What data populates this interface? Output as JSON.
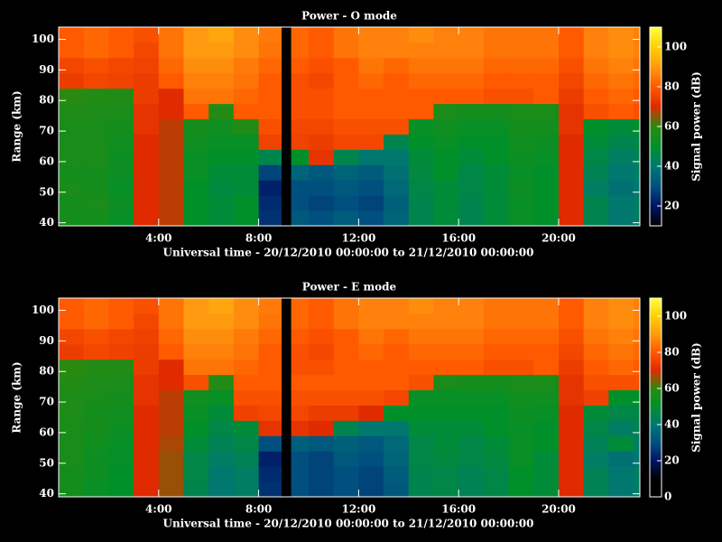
{
  "chart_data": [
    {
      "type": "heatmap",
      "title": "Power - O mode",
      "x_label": "Universal time - 20/12/2010 00:00:00 to 21/12/2010 00:00:00",
      "y_label": "Range (km)",
      "colorbar_label": "Signal power (dB)",
      "xbins": [
        0,
        1,
        2,
        3,
        4,
        5,
        6,
        7,
        8,
        8.9,
        9.3,
        10,
        11,
        12,
        13,
        14,
        15,
        16,
        17,
        18,
        19,
        20,
        21,
        22,
        23,
        23.25
      ],
      "ybins": [
        39,
        44,
        49,
        54,
        59,
        64,
        69,
        74,
        79,
        84,
        89,
        94,
        99,
        104
      ],
      "xlim": [
        0,
        23.25
      ],
      "ylim": [
        39,
        104
      ],
      "zlim": [
        10,
        110
      ],
      "xticks": [
        {
          "value": 4,
          "label": "4:00"
        },
        {
          "value": 8,
          "label": "8:00"
        },
        {
          "value": 12,
          "label": "12:00"
        },
        {
          "value": 16,
          "label": "16:00"
        },
        {
          "value": 20,
          "label": "20:00"
        }
      ],
      "yticks": [
        40,
        50,
        60,
        70,
        80,
        90,
        100
      ],
      "zticks": [
        20,
        40,
        60,
        80,
        100
      ],
      "colorscale": [
        "#000000",
        "#001464",
        "#00507f",
        "#007870",
        "#00902a",
        "#2a8a10",
        "#e02a00",
        "#ff5a00",
        "#ff9a10",
        "#ffd000",
        "#ffff40"
      ],
      "z": [
        [
          55,
          55,
          52,
          70,
          68,
          50,
          48,
          50,
          25,
          null,
          32,
          30,
          33,
          30,
          35,
          45,
          48,
          45,
          48,
          52,
          50,
          70,
          45,
          40,
          42
        ],
        [
          55,
          56,
          53,
          70,
          68,
          50,
          48,
          50,
          24,
          null,
          30,
          28,
          30,
          28,
          34,
          45,
          48,
          45,
          48,
          52,
          50,
          70,
          45,
          40,
          42
        ],
        [
          56,
          55,
          52,
          70,
          68,
          50,
          47,
          48,
          22,
          null,
          30,
          30,
          32,
          30,
          36,
          46,
          48,
          46,
          48,
          53,
          50,
          70,
          42,
          38,
          40
        ],
        [
          55,
          55,
          53,
          70,
          68,
          52,
          48,
          48,
          28,
          null,
          35,
          32,
          35,
          33,
          38,
          47,
          50,
          46,
          48,
          52,
          50,
          70,
          44,
          40,
          42
        ],
        [
          56,
          56,
          53,
          70,
          68,
          52,
          50,
          50,
          45,
          null,
          50,
          72,
          45,
          40,
          40,
          48,
          50,
          48,
          50,
          53,
          52,
          70,
          46,
          42,
          44
        ],
        [
          56,
          56,
          54,
          70,
          68,
          54,
          52,
          52,
          75,
          null,
          75,
          74,
          76,
          76,
          45,
          50,
          52,
          50,
          50,
          54,
          53,
          70,
          48,
          45,
          46
        ],
        [
          56,
          56,
          55,
          72,
          68,
          55,
          54,
          58,
          78,
          null,
          76,
          76,
          78,
          78,
          78,
          52,
          54,
          52,
          52,
          55,
          55,
          72,
          50,
          48,
          50
        ],
        [
          57,
          57,
          56,
          72,
          70,
          80,
          58,
          80,
          80,
          null,
          78,
          78,
          80,
          80,
          80,
          80,
          56,
          55,
          55,
          56,
          56,
          72,
          78,
          80,
          78
        ],
        [
          60,
          58,
          58,
          74,
          70,
          84,
          84,
          82,
          80,
          null,
          78,
          78,
          80,
          80,
          80,
          80,
          80,
          80,
          78,
          78,
          80,
          74,
          80,
          82,
          80
        ],
        [
          74,
          76,
          75,
          74,
          80,
          86,
          86,
          84,
          80,
          null,
          78,
          76,
          80,
          82,
          80,
          82,
          82,
          82,
          80,
          80,
          80,
          76,
          82,
          84,
          82
        ],
        [
          76,
          78,
          76,
          75,
          82,
          88,
          88,
          85,
          82,
          null,
          80,
          78,
          80,
          84,
          82,
          84,
          84,
          84,
          82,
          82,
          82,
          78,
          84,
          86,
          84
        ],
        [
          80,
          82,
          80,
          76,
          84,
          90,
          90,
          88,
          84,
          null,
          82,
          80,
          84,
          86,
          86,
          86,
          86,
          86,
          84,
          84,
          84,
          80,
          86,
          88,
          86
        ],
        [
          80,
          82,
          80,
          78,
          84,
          90,
          92,
          88,
          85,
          null,
          82,
          80,
          84,
          86,
          86,
          88,
          86,
          86,
          84,
          84,
          84,
          80,
          86,
          88,
          86
        ]
      ]
    },
    {
      "type": "heatmap",
      "title": "Power - E mode",
      "x_label": "Universal time - 20/12/2010 00:00:00 to 21/12/2010 00:00:00",
      "y_label": "Range (km)",
      "colorbar_label": "Signal power (dB)",
      "xbins": [
        0,
        1,
        2,
        3,
        4,
        5,
        6,
        7,
        8,
        8.9,
        9.3,
        10,
        11,
        12,
        13,
        14,
        15,
        16,
        17,
        18,
        19,
        20,
        21,
        22,
        23,
        23.25
      ],
      "ybins": [
        39,
        44,
        49,
        54,
        59,
        64,
        69,
        74,
        79,
        84,
        89,
        94,
        99,
        104
      ],
      "xlim": [
        0,
        23.25
      ],
      "ylim": [
        39,
        104
      ],
      "zlim": [
        0,
        110
      ],
      "xticks": [
        {
          "value": 4,
          "label": "4:00"
        },
        {
          "value": 8,
          "label": "8:00"
        },
        {
          "value": 12,
          "label": "12:00"
        },
        {
          "value": 16,
          "label": "16:00"
        },
        {
          "value": 20,
          "label": "20:00"
        }
      ],
      "yticks": [
        40,
        50,
        60,
        70,
        80,
        90,
        100
      ],
      "zticks": [
        0,
        20,
        40,
        60,
        80,
        100
      ],
      "colorscale": [
        "#000000",
        "#000000",
        "#001464",
        "#00507f",
        "#007870",
        "#00902a",
        "#2a8a10",
        "#e02a00",
        "#ff5a00",
        "#ff9a10",
        "#ffd000",
        "#ffff40"
      ],
      "z": [
        [
          55,
          52,
          50,
          70,
          66,
          45,
          40,
          42,
          25,
          null,
          30,
          28,
          30,
          28,
          32,
          45,
          46,
          44,
          46,
          50,
          48,
          70,
          44,
          40,
          42
        ],
        [
          55,
          53,
          50,
          70,
          66,
          46,
          40,
          42,
          24,
          null,
          30,
          28,
          30,
          28,
          33,
          45,
          46,
          44,
          46,
          50,
          48,
          70,
          44,
          40,
          42
        ],
        [
          56,
          53,
          51,
          70,
          66,
          46,
          42,
          44,
          22,
          null,
          30,
          28,
          32,
          30,
          35,
          46,
          47,
          46,
          47,
          52,
          48,
          70,
          42,
          38,
          40
        ],
        [
          56,
          54,
          52,
          70,
          67,
          48,
          44,
          46,
          30,
          null,
          34,
          32,
          34,
          32,
          36,
          46,
          48,
          46,
          48,
          52,
          50,
          70,
          44,
          48,
          42
        ],
        [
          56,
          55,
          53,
          70,
          68,
          50,
          46,
          48,
          72,
          null,
          72,
          70,
          45,
          40,
          40,
          48,
          48,
          48,
          50,
          52,
          50,
          70,
          46,
          42,
          44
        ],
        [
          57,
          55,
          54,
          70,
          68,
          52,
          48,
          75,
          76,
          null,
          76,
          74,
          74,
          70,
          50,
          50,
          50,
          50,
          50,
          53,
          52,
          70,
          48,
          46,
          46
        ],
        [
          57,
          56,
          55,
          72,
          68,
          54,
          52,
          78,
          78,
          null,
          78,
          78,
          78,
          78,
          76,
          52,
          52,
          52,
          52,
          54,
          54,
          72,
          75,
          50,
          50
        ],
        [
          58,
          57,
          56,
          72,
          70,
          78,
          58,
          80,
          80,
          null,
          80,
          80,
          80,
          80,
          80,
          78,
          56,
          55,
          55,
          56,
          56,
          72,
          78,
          78,
          78
        ],
        [
          60,
          58,
          58,
          74,
          70,
          84,
          84,
          82,
          80,
          null,
          78,
          78,
          80,
          80,
          80,
          80,
          80,
          80,
          78,
          78,
          80,
          74,
          80,
          82,
          80
        ],
        [
          74,
          76,
          75,
          74,
          80,
          86,
          86,
          84,
          80,
          null,
          78,
          76,
          80,
          82,
          80,
          82,
          82,
          82,
          80,
          80,
          80,
          76,
          82,
          84,
          82
        ],
        [
          76,
          78,
          76,
          75,
          82,
          88,
          88,
          85,
          82,
          null,
          80,
          78,
          80,
          84,
          82,
          84,
          84,
          84,
          82,
          82,
          82,
          78,
          84,
          86,
          84
        ],
        [
          80,
          82,
          80,
          76,
          84,
          90,
          90,
          88,
          84,
          null,
          82,
          80,
          84,
          86,
          86,
          86,
          86,
          86,
          84,
          84,
          84,
          80,
          86,
          88,
          86
        ],
        [
          80,
          82,
          80,
          78,
          84,
          90,
          92,
          88,
          85,
          null,
          82,
          80,
          84,
          86,
          86,
          88,
          86,
          86,
          84,
          84,
          84,
          80,
          86,
          88,
          86
        ]
      ]
    }
  ]
}
